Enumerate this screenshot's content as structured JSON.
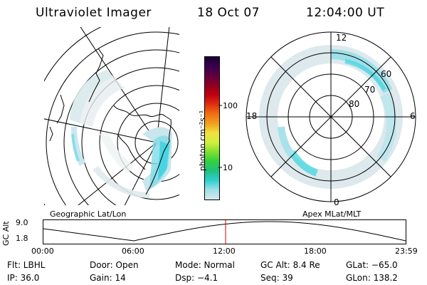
{
  "header": {
    "instrument": "Ultraviolet Imager",
    "date": "18 Oct 07",
    "time": "12:04:00 UT"
  },
  "left_map": {
    "caption": "Geographic Lat/Lon"
  },
  "right_map": {
    "caption": "Apex MLat/MLT",
    "hour_labels": {
      "top": "12",
      "right": "6",
      "bottom": "0",
      "left": "18"
    },
    "lat_labels": [
      "60",
      "70",
      "80"
    ]
  },
  "colorbar": {
    "unit_label": "photon cm⁻²s⁻¹",
    "tick_labels": [
      "100",
      "10"
    ],
    "colors": [
      "#1a0030",
      "#3a0050",
      "#600040",
      "#900020",
      "#c00010",
      "#e03010",
      "#f07010",
      "#f0a020",
      "#f0e040",
      "#d0f040",
      "#80e030",
      "#30d040",
      "#20c080",
      "#30d0d0",
      "#a0e0e8",
      "#d8e8ec"
    ]
  },
  "altitude_plot": {
    "ylabel": "GC Alt",
    "y_ticks": [
      "9.0",
      "1.8"
    ],
    "x_ticks": [
      "00:00",
      "06:00",
      "12:00",
      "18:00",
      "23:59"
    ],
    "current_marker_hours": 12.07,
    "line_color": "#000000",
    "marker_color": "#e00000"
  },
  "status": {
    "row1": {
      "flt": "Flt: LBHL",
      "door": "Door: Open",
      "mode": "Mode: Normal",
      "gcalt": "GC Alt: 8.4 Re",
      "glat": "GLat: −65.0"
    },
    "row2": {
      "ip": "IP: 36.0",
      "gain": "Gain: 14",
      "dsp": "Dsp:    −4.1",
      "seq": "Seq: 39",
      "glon": "GLon: 138.2"
    }
  }
}
